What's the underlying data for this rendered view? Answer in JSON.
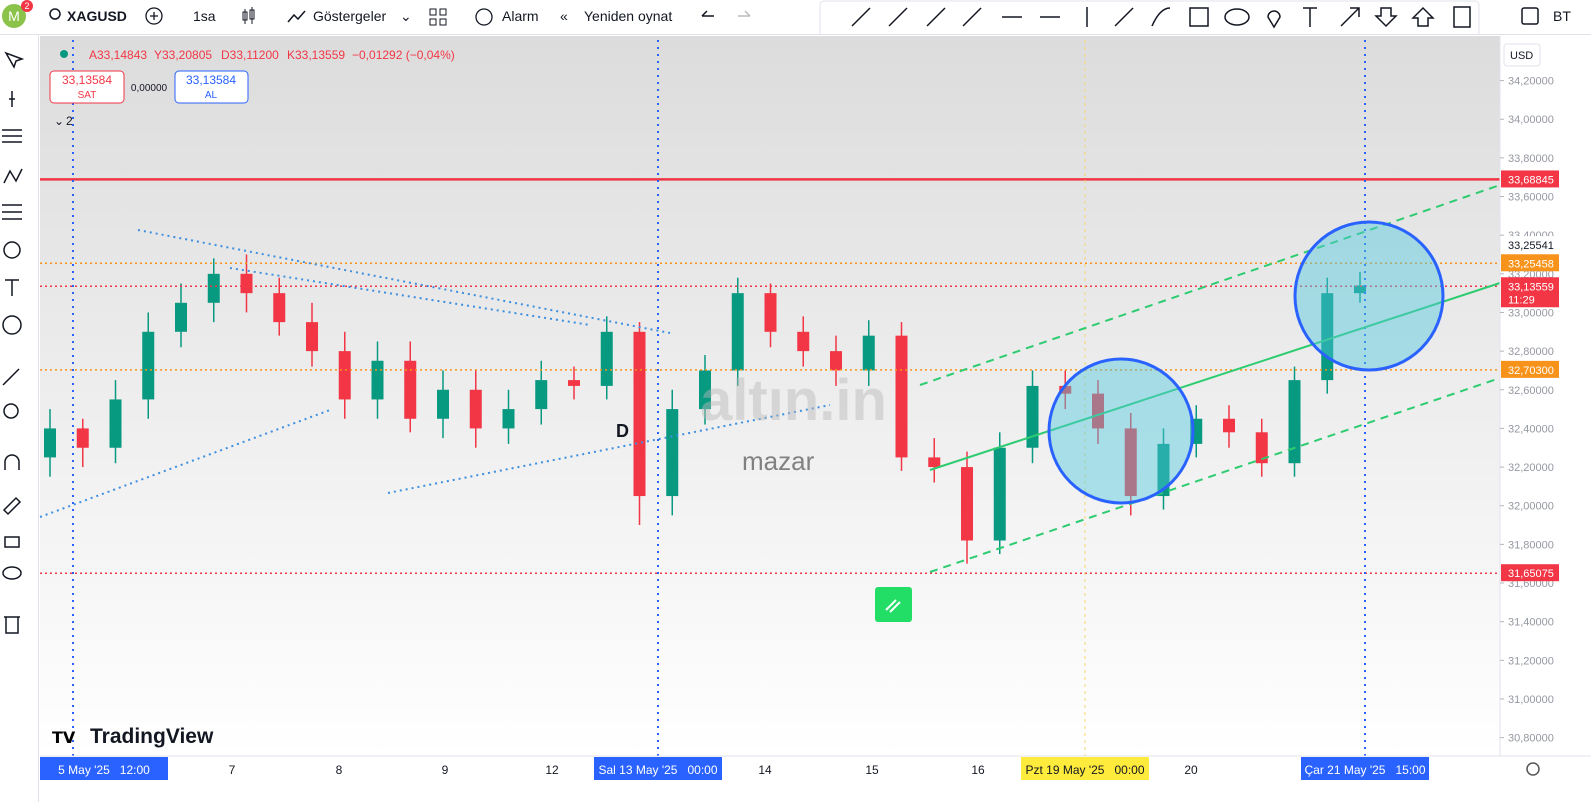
{
  "toolbar": {
    "avatar": "M",
    "notifications": "2",
    "symbol": "XAGUSD",
    "interval": "1sa",
    "indicators": "Göstergeler",
    "alarm": "Alarm",
    "replay": "Yeniden oynat",
    "right": "BT"
  },
  "legend": {
    "open": "A33,14843",
    "high": "Y33,20805",
    "low": "D33,11200",
    "close": "K33,13559",
    "change": "−0,01292 (−0,04%)"
  },
  "trade": {
    "sell_price": "33,13584",
    "sell": "SAT",
    "spread": "0,00000",
    "buy_price": "33,13584",
    "buy": "AL"
  },
  "collapsed": "2",
  "currency": "USD",
  "watermark": {
    "brand": "TradingView",
    "site": "mazar",
    "marker": "D"
  },
  "chart_data": {
    "type": "candlestick",
    "up_color": "#089981",
    "down_color": "#f23645",
    "ylim": [
      30.71,
      34.41
    ],
    "yticks": [
      {
        "value": 34.2,
        "label": "34,20000"
      },
      {
        "value": 34.0,
        "label": "34,00000"
      },
      {
        "value": 33.8,
        "label": "33,80000"
      },
      {
        "value": 33.6,
        "label": "33,60000"
      },
      {
        "value": 33.4,
        "label": "33,40000"
      },
      {
        "value": 33.2,
        "label": "33,20000"
      },
      {
        "value": 33.0,
        "label": "33,00000"
      },
      {
        "value": 32.8,
        "label": "32,80000"
      },
      {
        "value": 32.6,
        "label": "32,60000"
      },
      {
        "value": 32.4,
        "label": "32,40000"
      },
      {
        "value": 32.2,
        "label": "32,20000"
      },
      {
        "value": 32.0,
        "label": "32,00000"
      },
      {
        "value": 31.8,
        "label": "31,80000"
      },
      {
        "value": 31.6,
        "label": "31,60000"
      },
      {
        "value": 31.4,
        "label": "31,40000"
      },
      {
        "value": 31.2,
        "label": "31,20000"
      },
      {
        "value": 31.0,
        "label": "31,00000"
      },
      {
        "value": 30.8,
        "label": "30,80000"
      }
    ],
    "x_labels": [
      "5 May '25   12:00",
      "7",
      "8",
      "9",
      "12",
      "Sal 13 May '25   00:00",
      "14",
      "15",
      "16",
      "Pzt 19 May '25   00:00",
      "20",
      "Çar 21 May '25   15:00"
    ],
    "x_label_highlights": [
      "#2962ff",
      null,
      null,
      null,
      null,
      "#2962ff",
      null,
      null,
      null,
      "#ffeb3b",
      null,
      "#2962ff"
    ],
    "open": [
      32.25,
      32.4,
      32.3,
      32.55,
      32.9,
      33.05,
      33.2,
      33.1,
      32.95,
      32.8,
      32.55,
      32.75,
      32.45,
      32.6,
      32.4,
      32.5,
      32.65,
      32.62,
      32.9,
      32.05,
      32.5,
      32.7,
      33.1,
      32.9,
      32.8,
      32.7,
      32.88,
      32.25,
      32.2,
      31.82,
      32.3,
      32.62,
      32.58,
      32.4,
      32.05,
      32.32,
      32.45,
      32.38,
      32.22,
      32.65,
      33.1
    ],
    "high": [
      32.5,
      32.45,
      32.65,
      33.0,
      33.15,
      33.28,
      33.3,
      33.18,
      33.05,
      32.9,
      32.85,
      32.85,
      32.7,
      32.7,
      32.6,
      32.75,
      32.72,
      32.98,
      32.95,
      32.6,
      32.78,
      33.18,
      33.15,
      32.98,
      32.88,
      32.96,
      32.95,
      32.35,
      32.28,
      32.38,
      32.7,
      32.7,
      32.65,
      32.48,
      32.4,
      32.52,
      32.52,
      32.45,
      32.72,
      33.18,
      33.21
    ],
    "low": [
      32.15,
      32.2,
      32.22,
      32.45,
      32.82,
      32.95,
      33.0,
      32.88,
      32.72,
      32.45,
      32.45,
      32.38,
      32.35,
      32.3,
      32.32,
      32.42,
      32.55,
      32.55,
      31.9,
      31.95,
      32.42,
      32.62,
      32.82,
      32.72,
      32.62,
      32.62,
      32.18,
      32.12,
      31.7,
      31.75,
      32.22,
      32.5,
      32.32,
      31.95,
      31.98,
      32.25,
      32.3,
      32.15,
      32.15,
      32.58,
      33.05
    ],
    "close": [
      32.4,
      32.3,
      32.55,
      32.9,
      33.05,
      33.2,
      33.1,
      32.95,
      32.8,
      32.55,
      32.75,
      32.45,
      32.6,
      32.4,
      32.5,
      32.65,
      32.62,
      32.9,
      32.05,
      32.5,
      32.7,
      33.1,
      32.9,
      32.8,
      32.7,
      32.88,
      32.25,
      32.2,
      31.82,
      32.3,
      32.62,
      32.58,
      32.4,
      32.05,
      32.32,
      32.45,
      32.38,
      32.22,
      32.65,
      33.1,
      33.14
    ],
    "levels": [
      {
        "value": 33.68845,
        "label": "33,68845",
        "color": "#f23645",
        "line": "solid"
      },
      {
        "value": 33.25541,
        "label": "33,25541",
        "color": "#ffffff",
        "line": "none"
      },
      {
        "value": 33.25458,
        "label": "33,25458",
        "color": "#f7931a",
        "line": "dotted"
      },
      {
        "value": 33.13559,
        "label": "33,13559",
        "color": "#f23645",
        "line": "dotted",
        "countdown": "11:29"
      },
      {
        "value": 32.703,
        "label": "32,70300",
        "color": "#f7931a",
        "line": "dotted"
      },
      {
        "value": 31.65075,
        "label": "31,65075",
        "color": "#f23645",
        "line": "dotted"
      }
    ]
  }
}
